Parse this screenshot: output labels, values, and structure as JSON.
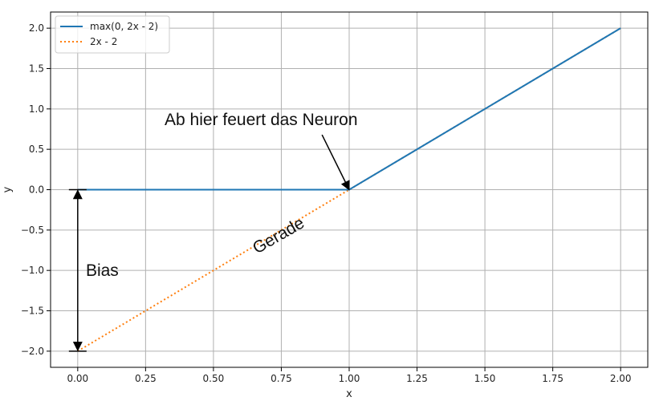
{
  "chart_data": {
    "type": "line",
    "xlabel": "x",
    "ylabel": "y",
    "xlim": [
      -0.1,
      2.1
    ],
    "ylim": [
      -2.2,
      2.2
    ],
    "xticks": [
      0.0,
      0.25,
      0.5,
      0.75,
      1.0,
      1.25,
      1.5,
      1.75,
      2.0
    ],
    "yticks": [
      -2.0,
      -1.5,
      -1.0,
      -0.5,
      0.0,
      0.5,
      1.0,
      1.5,
      2.0
    ],
    "xtick_labels": [
      "0.00",
      "0.25",
      "0.50",
      "0.75",
      "1.00",
      "1.25",
      "1.50",
      "1.75",
      "2.00"
    ],
    "ytick_labels": [
      "−2.0",
      "−1.5",
      "−1.0",
      "−0.5",
      "0.0",
      "0.5",
      "1.0",
      "1.5",
      "2.0"
    ],
    "grid": true,
    "legend_position": "top-left",
    "series": [
      {
        "name": "max(0, 2x - 2)",
        "style": "solid",
        "color": "#1f77b4",
        "x": [
          0.0,
          1.0,
          2.0
        ],
        "y": [
          0.0,
          0.0,
          2.0
        ]
      },
      {
        "name": "2x - 2",
        "style": "dotted",
        "color": "#ff7f0e",
        "x": [
          0.0,
          2.0
        ],
        "y": [
          -2.0,
          2.0
        ]
      }
    ],
    "annotations": [
      {
        "text": "Ab hier feuert das Neuron",
        "text_x": 0.32,
        "text_y": 0.8,
        "arrow_from": [
          0.9,
          0.68
        ],
        "arrow_to": [
          1.0,
          0.0
        ]
      },
      {
        "text": "Bias",
        "text_x": 0.03,
        "text_y": -1.0,
        "arrow_from": [
          0.0,
          0.0
        ],
        "arrow_to": [
          0.0,
          -2.0
        ]
      },
      {
        "text": "Gerade",
        "text_x": 0.66,
        "text_y": -0.8,
        "rotation_deg": -30
      }
    ]
  }
}
